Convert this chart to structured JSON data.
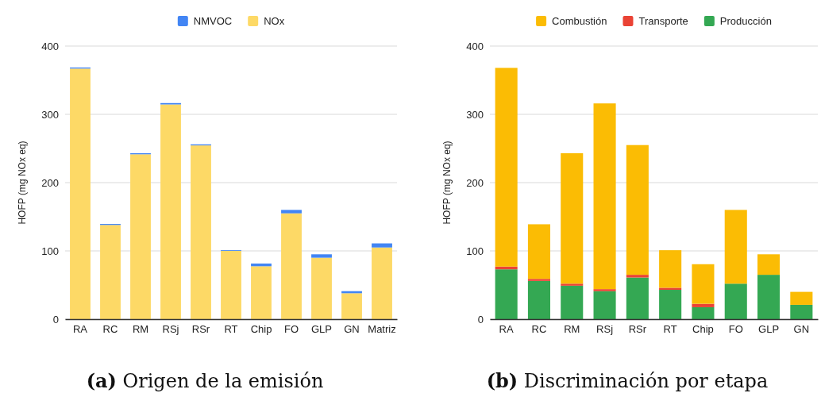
{
  "chart_data": [
    {
      "type": "bar",
      "title": "(a) Origen de la emisión",
      "ylabel": "HOFP (mg NOx eq)",
      "categories": [
        "RA",
        "RC",
        "RM",
        "RSj",
        "RSr",
        "RT",
        "Chip",
        "FO",
        "GLP",
        "GN",
        "Matriz"
      ],
      "stacked": true,
      "legend": "top",
      "grid": "y",
      "ylim": [
        0,
        400
      ],
      "yticks": [
        0,
        100,
        200,
        300,
        400
      ],
      "series": [
        {
          "name": "NOx",
          "color": "#fdd966",
          "values": [
            367,
            138,
            241.5,
            314.5,
            254.5,
            100,
            77.5,
            155,
            90,
            38,
            105
          ]
        },
        {
          "name": "NMVOC",
          "color": "#4285f4",
          "values": [
            1.5,
            1.5,
            1.5,
            2,
            1.5,
            1,
            4,
            5,
            5,
            3,
            6
          ]
        }
      ]
    },
    {
      "type": "bar",
      "title": "(b) Discriminación por etapa",
      "ylabel": "HOFP (mg NOx eq)",
      "categories": [
        "RA",
        "RC",
        "RM",
        "RSj",
        "RSr",
        "RT",
        "Chip",
        "FO",
        "GLP",
        "GN"
      ],
      "stacked": true,
      "legend": "top",
      "grid": "y",
      "ylim": [
        0,
        400
      ],
      "yticks": [
        0,
        100,
        200,
        300,
        400
      ],
      "series": [
        {
          "name": "Producción",
          "color": "#34a853",
          "values": [
            73,
            56,
            49,
            41,
            61,
            43,
            17.5,
            52,
            65,
            21
          ]
        },
        {
          "name": "Transporte",
          "color": "#ea4335",
          "values": [
            4,
            3,
            3,
            3,
            4,
            3,
            5,
            0,
            0,
            0
          ]
        },
        {
          "name": "Combustión",
          "color": "#fbbc04",
          "values": [
            291,
            80,
            191,
            272,
            190,
            55,
            58,
            108,
            30,
            19
          ]
        }
      ]
    }
  ]
}
